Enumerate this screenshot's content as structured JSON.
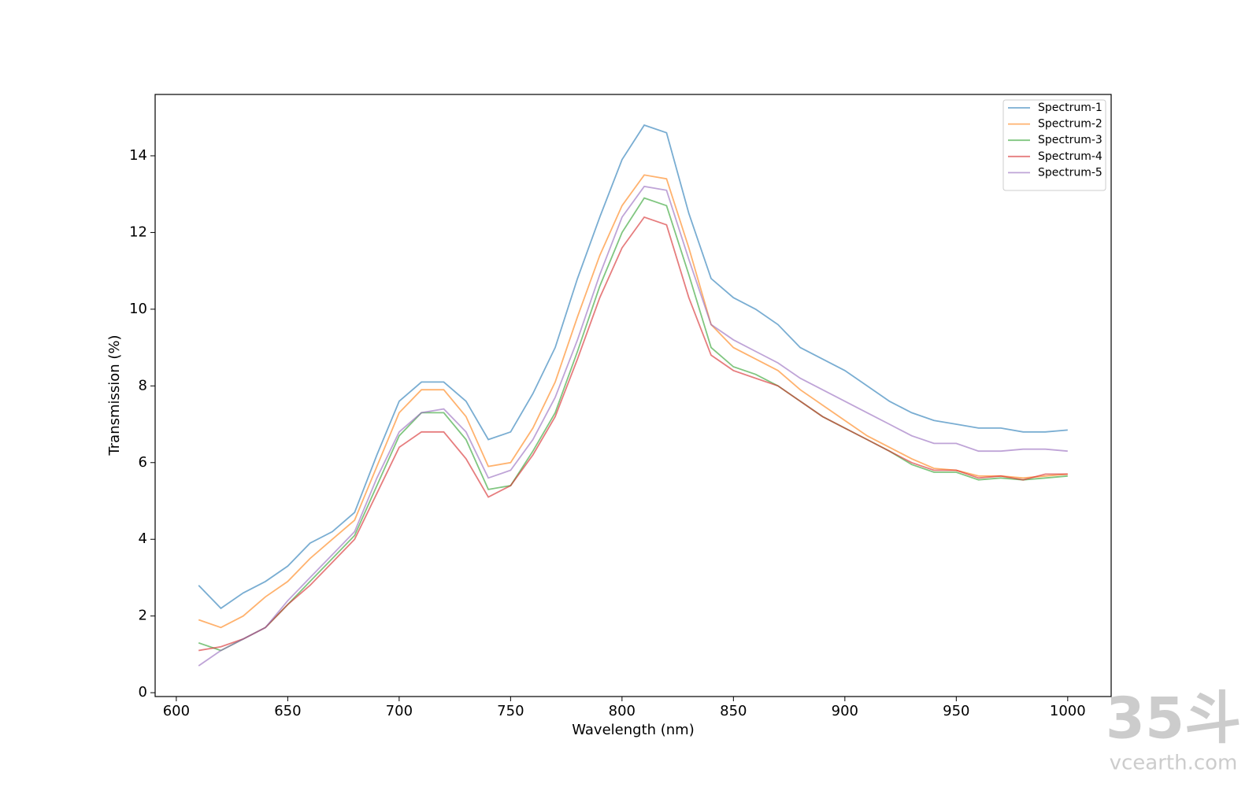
{
  "chart_data": {
    "type": "line",
    "xlabel": "Wavelength (nm)",
    "ylabel": "Transmission (%)",
    "x": [
      610,
      620,
      630,
      640,
      650,
      660,
      670,
      680,
      690,
      700,
      710,
      720,
      730,
      740,
      750,
      760,
      770,
      780,
      790,
      800,
      810,
      820,
      830,
      840,
      850,
      860,
      870,
      880,
      890,
      900,
      910,
      920,
      930,
      940,
      950,
      960,
      970,
      980,
      990,
      1000
    ],
    "series": [
      {
        "name": "Spectrum-1",
        "color": "#1f77b4",
        "values": [
          2.8,
          2.2,
          2.6,
          2.9,
          3.3,
          3.9,
          4.2,
          4.7,
          6.2,
          7.6,
          8.1,
          8.1,
          7.6,
          6.6,
          6.8,
          7.8,
          9.0,
          10.8,
          12.4,
          13.9,
          14.8,
          14.6,
          12.5,
          10.8,
          10.3,
          10.0,
          9.6,
          9.0,
          8.7,
          8.4,
          8.0,
          7.6,
          7.3,
          7.1,
          7.0,
          6.9,
          6.9,
          6.8,
          6.8,
          6.85
        ]
      },
      {
        "name": "Spectrum-2",
        "color": "#ff7f0e",
        "values": [
          1.9,
          1.7,
          2.0,
          2.5,
          2.9,
          3.5,
          4.0,
          4.5,
          5.9,
          7.3,
          7.9,
          7.9,
          7.2,
          5.9,
          6.0,
          6.9,
          8.1,
          9.8,
          11.4,
          12.7,
          13.5,
          13.4,
          11.6,
          9.6,
          9.0,
          8.7,
          8.4,
          7.9,
          7.5,
          7.1,
          6.7,
          6.4,
          6.1,
          5.85,
          5.8,
          5.65,
          5.65,
          5.6,
          5.65,
          5.7
        ]
      },
      {
        "name": "Spectrum-3",
        "color": "#2ca02c",
        "values": [
          1.3,
          1.1,
          1.4,
          1.7,
          2.3,
          2.9,
          3.5,
          4.1,
          5.4,
          6.7,
          7.3,
          7.3,
          6.6,
          5.3,
          5.4,
          6.3,
          7.3,
          8.9,
          10.6,
          12.0,
          12.9,
          12.7,
          10.9,
          9.0,
          8.5,
          8.3,
          8.0,
          7.6,
          7.2,
          6.9,
          6.6,
          6.3,
          5.95,
          5.75,
          5.75,
          5.55,
          5.6,
          5.55,
          5.6,
          5.65
        ]
      },
      {
        "name": "Spectrum-4",
        "color": "#d62728",
        "values": [
          1.1,
          1.2,
          1.4,
          1.7,
          2.3,
          2.8,
          3.4,
          4.0,
          5.2,
          6.4,
          6.8,
          6.8,
          6.1,
          5.1,
          5.4,
          6.2,
          7.2,
          8.7,
          10.3,
          11.6,
          12.4,
          12.2,
          10.3,
          8.8,
          8.4,
          8.2,
          8.0,
          7.6,
          7.2,
          6.9,
          6.6,
          6.3,
          6.0,
          5.8,
          5.8,
          5.6,
          5.65,
          5.55,
          5.7,
          5.7
        ]
      },
      {
        "name": "Spectrum-5",
        "color": "#9467bd",
        "values": [
          0.7,
          1.1,
          1.4,
          1.7,
          2.4,
          3.0,
          3.6,
          4.2,
          5.6,
          6.8,
          7.3,
          7.4,
          6.8,
          5.6,
          5.8,
          6.6,
          7.7,
          9.2,
          10.9,
          12.4,
          13.2,
          13.1,
          11.3,
          9.6,
          9.2,
          8.9,
          8.6,
          8.2,
          7.9,
          7.6,
          7.3,
          7.0,
          6.7,
          6.5,
          6.5,
          6.3,
          6.3,
          6.35,
          6.35,
          6.3
        ]
      }
    ],
    "alpha": 0.6,
    "xlim": [
      590.5,
      1019.5
    ],
    "xticks": [
      600,
      650,
      700,
      750,
      800,
      850,
      900,
      950,
      1000
    ],
    "ylim": [
      -0.1,
      15.6
    ],
    "yticks": [
      0,
      2,
      4,
      6,
      8,
      10,
      12,
      14
    ],
    "grid": false,
    "legend": "upper right"
  },
  "watermark": {
    "mark": "35斗",
    "site": "vcearth.com"
  }
}
